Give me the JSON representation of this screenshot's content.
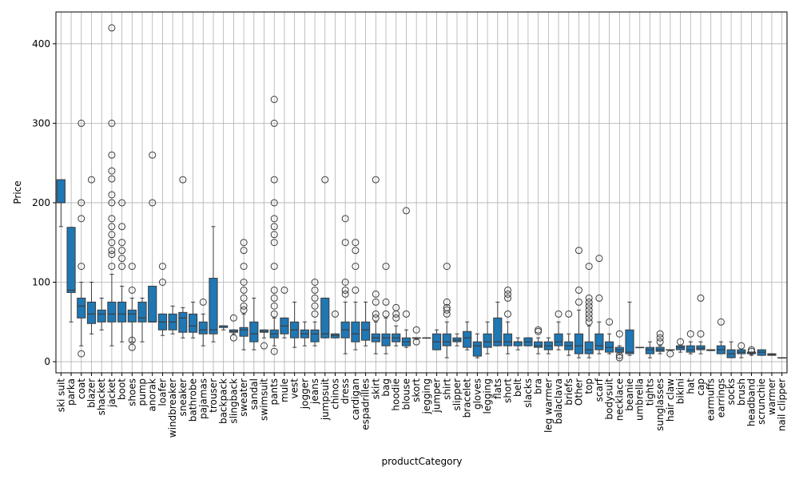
{
  "chart_data": {
    "type": "box",
    "x_label": "productCategory",
    "y_label": "Price",
    "color": "#1f77b4",
    "grid": true,
    "ylim": [
      -14,
      440
    ],
    "yticks": [
      0,
      100,
      200,
      300,
      400
    ],
    "categories": [
      "ski suit",
      "parka",
      "coat",
      "blazer",
      "shacket",
      "jacket",
      "boot",
      "shoes",
      "pump",
      "anorak",
      "loafer",
      "windbreaker",
      "sneaker",
      "bathrobe",
      "pajamas",
      "trouser",
      "backpack",
      "slingback",
      "sweater",
      "sandal",
      "swimsuit",
      "pants",
      "mule",
      "vest",
      "jogger",
      "jeans",
      "jumpsuit",
      "chinos",
      "dress",
      "cardigan",
      "espadrilles",
      "skirt",
      "bag",
      "hoodie",
      "blouse",
      "skort",
      "jegging",
      "jumper",
      "shirt",
      "slipper",
      "bracelet",
      "gloves",
      "legging",
      "flats",
      "short",
      "belt",
      "slacks",
      "bra",
      "leg warmer",
      "balaclava",
      "briefs",
      "Other",
      "top",
      "scarf",
      "bodysuit",
      "necklace",
      "beanie",
      "umbrella",
      "tights",
      "sunglasses",
      "hair claw",
      "bikini",
      "hat",
      "cap",
      "earmuffs",
      "earrings",
      "socks",
      "brush",
      "headband",
      "scrunchie",
      "warmer",
      "nail clipper"
    ],
    "boxes": [
      {
        "lo": 170,
        "q1": 200,
        "med": 200,
        "q3": 229,
        "hi": 229,
        "fliers": []
      },
      {
        "lo": 50,
        "q1": 87,
        "med": 90,
        "q3": 169,
        "hi": 169,
        "fliers": []
      },
      {
        "lo": 20,
        "q1": 55,
        "med": 70,
        "q3": 80,
        "hi": 100,
        "fliers": [
          10,
          120,
          180,
          200,
          300
        ]
      },
      {
        "lo": 35,
        "q1": 48,
        "med": 60,
        "q3": 75,
        "hi": 100,
        "fliers": [
          229
        ]
      },
      {
        "lo": 40,
        "q1": 50,
        "med": 60,
        "q3": 65,
        "hi": 80,
        "fliers": []
      },
      {
        "lo": 20,
        "q1": 50,
        "med": 60,
        "q3": 75,
        "hi": 110,
        "fliers": [
          120,
          135,
          140,
          150,
          160,
          170,
          180,
          200,
          210,
          230,
          240,
          260,
          300,
          420
        ]
      },
      {
        "lo": 25,
        "q1": 50,
        "med": 60,
        "q3": 75,
        "hi": 95,
        "fliers": [
          120,
          130,
          140,
          150,
          170,
          200
        ]
      },
      {
        "lo": 25,
        "q1": 50,
        "med": 60,
        "q3": 65,
        "hi": 80,
        "fliers": [
          18,
          27,
          90,
          120
        ]
      },
      {
        "lo": 25,
        "q1": 50,
        "med": 55,
        "q3": 75,
        "hi": 80,
        "fliers": []
      },
      {
        "lo": 50,
        "q1": 50,
        "med": 50,
        "q3": 95,
        "hi": 95,
        "fliers": [
          200,
          260
        ]
      },
      {
        "lo": 33,
        "q1": 40,
        "med": 50,
        "q3": 60,
        "hi": 60,
        "fliers": [
          100,
          120
        ]
      },
      {
        "lo": 35,
        "q1": 40,
        "med": 50,
        "q3": 60,
        "hi": 70,
        "fliers": []
      },
      {
        "lo": 30,
        "q1": 37,
        "med": 55,
        "q3": 62,
        "hi": 68,
        "fliers": [
          229
        ]
      },
      {
        "lo": 30,
        "q1": 37,
        "med": 45,
        "q3": 60,
        "hi": 75,
        "fliers": []
      },
      {
        "lo": 20,
        "q1": 35,
        "med": 40,
        "q3": 50,
        "hi": 60,
        "fliers": [
          75
        ]
      },
      {
        "lo": 25,
        "q1": 35,
        "med": 40,
        "q3": 105,
        "hi": 170,
        "fliers": []
      },
      {
        "lo": 40,
        "q1": 43,
        "med": 45,
        "q3": 45,
        "hi": 45,
        "fliers": []
      },
      {
        "lo": 35,
        "q1": 37,
        "med": 38,
        "q3": 40,
        "hi": 40,
        "fliers": [
          30,
          55
        ]
      },
      {
        "lo": 15,
        "q1": 32,
        "med": 40,
        "q3": 43,
        "hi": 60,
        "fliers": [
          65,
          70,
          80,
          90,
          100,
          120,
          140,
          150
        ]
      },
      {
        "lo": 15,
        "q1": 25,
        "med": 35,
        "q3": 50,
        "hi": 80,
        "fliers": []
      },
      {
        "lo": 30,
        "q1": 37,
        "med": 38,
        "q3": 40,
        "hi": 40,
        "fliers": [
          20
        ]
      },
      {
        "lo": 20,
        "q1": 30,
        "med": 35,
        "q3": 40,
        "hi": 55,
        "fliers": [
          13,
          60,
          70,
          80,
          90,
          120,
          150,
          160,
          170,
          180,
          200,
          229,
          300,
          330
        ]
      },
      {
        "lo": 30,
        "q1": 35,
        "med": 45,
        "q3": 55,
        "hi": 55,
        "fliers": [
          90
        ]
      },
      {
        "lo": 18,
        "q1": 30,
        "med": 40,
        "q3": 50,
        "hi": 75,
        "fliers": []
      },
      {
        "lo": 20,
        "q1": 30,
        "med": 35,
        "q3": 40,
        "hi": 50,
        "fliers": []
      },
      {
        "lo": 20,
        "q1": 25,
        "med": 35,
        "q3": 40,
        "hi": 50,
        "fliers": [
          60,
          70,
          80,
          90,
          100
        ]
      },
      {
        "lo": 30,
        "q1": 30,
        "med": 35,
        "q3": 80,
        "hi": 80,
        "fliers": [
          229
        ]
      },
      {
        "lo": 30,
        "q1": 30,
        "med": 33,
        "q3": 35,
        "hi": 35,
        "fliers": [
          60
        ]
      },
      {
        "lo": 10,
        "q1": 30,
        "med": 40,
        "q3": 50,
        "hi": 75,
        "fliers": [
          85,
          90,
          100,
          150,
          180
        ]
      },
      {
        "lo": 15,
        "q1": 25,
        "med": 35,
        "q3": 50,
        "hi": 75,
        "fliers": [
          90,
          120,
          140,
          150
        ]
      },
      {
        "lo": 20,
        "q1": 27,
        "med": 40,
        "q3": 50,
        "hi": 75,
        "fliers": []
      },
      {
        "lo": 10,
        "q1": 25,
        "med": 30,
        "q3": 35,
        "hi": 50,
        "fliers": [
          55,
          60,
          75,
          85,
          229
        ]
      },
      {
        "lo": 10,
        "q1": 20,
        "med": 30,
        "q3": 35,
        "hi": 55,
        "fliers": [
          60,
          75,
          120
        ]
      },
      {
        "lo": 20,
        "q1": 25,
        "med": 30,
        "q3": 35,
        "hi": 45,
        "fliers": [
          55,
          60,
          68
        ]
      },
      {
        "lo": 18,
        "q1": 20,
        "med": 25,
        "q3": 30,
        "hi": 40,
        "fliers": [
          60,
          190
        ]
      },
      {
        "lo": 28,
        "q1": 30,
        "med": 30,
        "q3": 30,
        "hi": 30,
        "fliers": [
          25,
          40
        ]
      },
      {
        "lo": 30,
        "q1": 30,
        "med": 30,
        "q3": 30,
        "hi": 30,
        "fliers": []
      },
      {
        "lo": 15,
        "q1": 15,
        "med": 25,
        "q3": 35,
        "hi": 40,
        "fliers": []
      },
      {
        "lo": 5,
        "q1": 20,
        "med": 25,
        "q3": 35,
        "hi": 50,
        "fliers": [
          60,
          65,
          68,
          75,
          120
        ]
      },
      {
        "lo": 20,
        "q1": 25,
        "med": 27,
        "q3": 30,
        "hi": 35,
        "fliers": []
      },
      {
        "lo": 15,
        "q1": 18,
        "med": 30,
        "q3": 38,
        "hi": 50,
        "fliers": []
      },
      {
        "lo": 5,
        "q1": 7,
        "med": 20,
        "q3": 25,
        "hi": 35,
        "fliers": []
      },
      {
        "lo": 10,
        "q1": 18,
        "med": 25,
        "q3": 35,
        "hi": 50,
        "fliers": []
      },
      {
        "lo": 20,
        "q1": 20,
        "med": 25,
        "q3": 55,
        "hi": 75,
        "fliers": []
      },
      {
        "lo": 10,
        "q1": 20,
        "med": 25,
        "q3": 35,
        "hi": 50,
        "fliers": [
          60,
          80,
          85,
          90
        ]
      },
      {
        "lo": 15,
        "q1": 20,
        "med": 25,
        "q3": 25,
        "hi": 30,
        "fliers": []
      },
      {
        "lo": 20,
        "q1": 20,
        "med": 25,
        "q3": 30,
        "hi": 30,
        "fliers": []
      },
      {
        "lo": 10,
        "q1": 18,
        "med": 20,
        "q3": 25,
        "hi": 30,
        "fliers": [
          38,
          40
        ]
      },
      {
        "lo": 10,
        "q1": 15,
        "med": 20,
        "q3": 25,
        "hi": 30,
        "fliers": []
      },
      {
        "lo": 15,
        "q1": 20,
        "med": 25,
        "q3": 35,
        "hi": 50,
        "fliers": [
          60
        ]
      },
      {
        "lo": 8,
        "q1": 15,
        "med": 20,
        "q3": 25,
        "hi": 35,
        "fliers": [
          60
        ]
      },
      {
        "lo": 5,
        "q1": 10,
        "med": 20,
        "q3": 35,
        "hi": 65,
        "fliers": [
          75,
          90,
          140
        ]
      },
      {
        "lo": 5,
        "q1": 10,
        "med": 15,
        "q3": 25,
        "hi": 45,
        "fliers": [
          50,
          55,
          60,
          65,
          70,
          75,
          80,
          120
        ]
      },
      {
        "lo": 10,
        "q1": 15,
        "med": 20,
        "q3": 35,
        "hi": 50,
        "fliers": [
          80,
          130
        ]
      },
      {
        "lo": 10,
        "q1": 12,
        "med": 18,
        "q3": 25,
        "hi": 35,
        "fliers": [
          50
        ]
      },
      {
        "lo": 10,
        "q1": 12,
        "med": 15,
        "q3": 18,
        "hi": 20,
        "fliers": [
          5,
          8,
          35
        ]
      },
      {
        "lo": 8,
        "q1": 10,
        "med": 12,
        "q3": 40,
        "hi": 75,
        "fliers": []
      },
      {
        "lo": 18,
        "q1": 18,
        "med": 18,
        "q3": 18,
        "hi": 18,
        "fliers": []
      },
      {
        "lo": 5,
        "q1": 10,
        "med": 15,
        "q3": 18,
        "hi": 25,
        "fliers": []
      },
      {
        "lo": 10,
        "q1": 13,
        "med": 15,
        "q3": 18,
        "hi": 20,
        "fliers": [
          25,
          30,
          35
        ]
      },
      {
        "lo": 15,
        "q1": 15,
        "med": 15,
        "q3": 15,
        "hi": 15,
        "fliers": [
          10
        ]
      },
      {
        "lo": 12,
        "q1": 15,
        "med": 18,
        "q3": 20,
        "hi": 20,
        "fliers": [
          25
        ]
      },
      {
        "lo": 10,
        "q1": 12,
        "med": 15,
        "q3": 20,
        "hi": 25,
        "fliers": [
          35
        ]
      },
      {
        "lo": 10,
        "q1": 15,
        "med": 17,
        "q3": 20,
        "hi": 25,
        "fliers": [
          35,
          80
        ]
      },
      {
        "lo": 14,
        "q1": 14,
        "med": 15,
        "q3": 15,
        "hi": 15,
        "fliers": []
      },
      {
        "lo": 10,
        "q1": 10,
        "med": 15,
        "q3": 20,
        "hi": 25,
        "fliers": [
          50
        ]
      },
      {
        "lo": 5,
        "q1": 5,
        "med": 10,
        "q3": 15,
        "hi": 25,
        "fliers": []
      },
      {
        "lo": 5,
        "q1": 10,
        "med": 12,
        "q3": 15,
        "hi": 15,
        "fliers": [
          20
        ]
      },
      {
        "lo": 8,
        "q1": 10,
        "med": 12,
        "q3": 12,
        "hi": 12,
        "fliers": [
          13,
          15
        ]
      },
      {
        "lo": 8,
        "q1": 8,
        "med": 12,
        "q3": 15,
        "hi": 15,
        "fliers": []
      },
      {
        "lo": 8,
        "q1": 8,
        "med": 9,
        "q3": 10,
        "hi": 10,
        "fliers": []
      },
      {
        "lo": 5,
        "q1": 5,
        "med": 5,
        "q3": 5,
        "hi": 5,
        "fliers": []
      }
    ]
  }
}
